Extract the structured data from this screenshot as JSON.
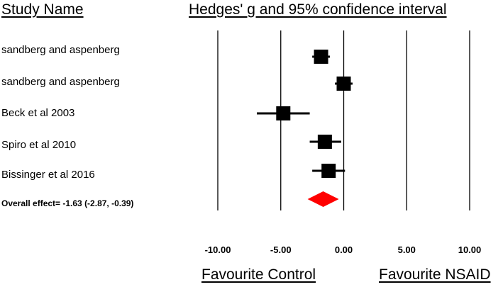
{
  "headers": {
    "study": "Study Name",
    "effect": "Hedges' g and 95% confidence interval"
  },
  "studies": [
    "sandberg and aspenberg",
    "sandberg and aspenberg",
    "Beck et al 2003",
    "Spiro et al 2010",
    "Bissinger et al 2016"
  ],
  "overall_label": "Overall effect= -1.63 (-2.87, -0.39)",
  "footer": {
    "left": "Favourite Control",
    "right": "Favourite NSAID"
  },
  "chart_data": {
    "type": "forest",
    "title": "Hedges' g and 95% confidence interval",
    "xlim": [
      -10,
      10
    ],
    "x_ticks": [
      -10,
      -5,
      0,
      5,
      10
    ],
    "x_tick_labels": [
      "-10.00",
      "-5.00",
      "0.00",
      "5.00",
      "10.00"
    ],
    "grid_lines_at": [
      -10,
      -5,
      0,
      5,
      10
    ],
    "studies": [
      {
        "name": "sandberg and aspenberg",
        "g": -1.8,
        "lower": -2.5,
        "upper": -1.1
      },
      {
        "name": "sandberg and aspenberg",
        "g": 0.0,
        "lower": -0.7,
        "upper": 0.7
      },
      {
        "name": "Beck et al 2003",
        "g": -4.8,
        "lower": -6.9,
        "upper": -2.7
      },
      {
        "name": "Spiro et al 2010",
        "g": -1.5,
        "lower": -2.7,
        "upper": -0.2
      },
      {
        "name": "Bissinger et al 2016",
        "g": -1.2,
        "lower": -2.5,
        "upper": 0.1
      }
    ],
    "overall": {
      "g": -1.63,
      "lower": -2.87,
      "upper": -0.39
    },
    "colors": {
      "markers": "#000000",
      "overall": "#ff0000",
      "grid": "#000000"
    }
  }
}
